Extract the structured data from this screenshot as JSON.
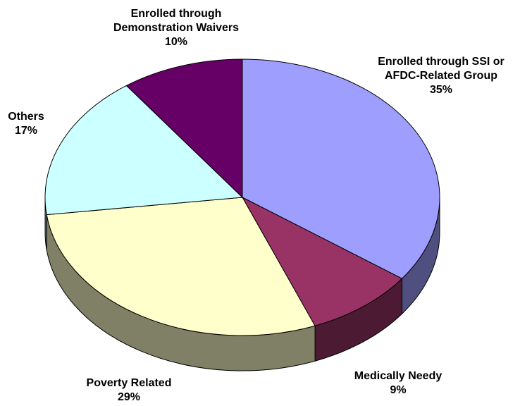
{
  "chart_data": {
    "type": "pie",
    "three_d": true,
    "title": "",
    "slices": [
      {
        "label": [
          "Enrolled through SSI or",
          "AFDC-Related Group"
        ],
        "value": 35,
        "value_label": "35%",
        "color": "#9e9eff"
      },
      {
        "label": [
          "Medically Needy"
        ],
        "value": 9,
        "value_label": "9%",
        "color": "#993366"
      },
      {
        "label": [
          "Poverty Related"
        ],
        "value": 29,
        "value_label": "29%",
        "color": "#ffffcc"
      },
      {
        "label": [
          "Others"
        ],
        "value": 17,
        "value_label": "17%",
        "color": "#ccffff"
      },
      {
        "label": [
          "Enrolled through",
          "Demonstration Waivers"
        ],
        "value": 10,
        "value_label": "10%",
        "color": "#660066"
      }
    ]
  }
}
